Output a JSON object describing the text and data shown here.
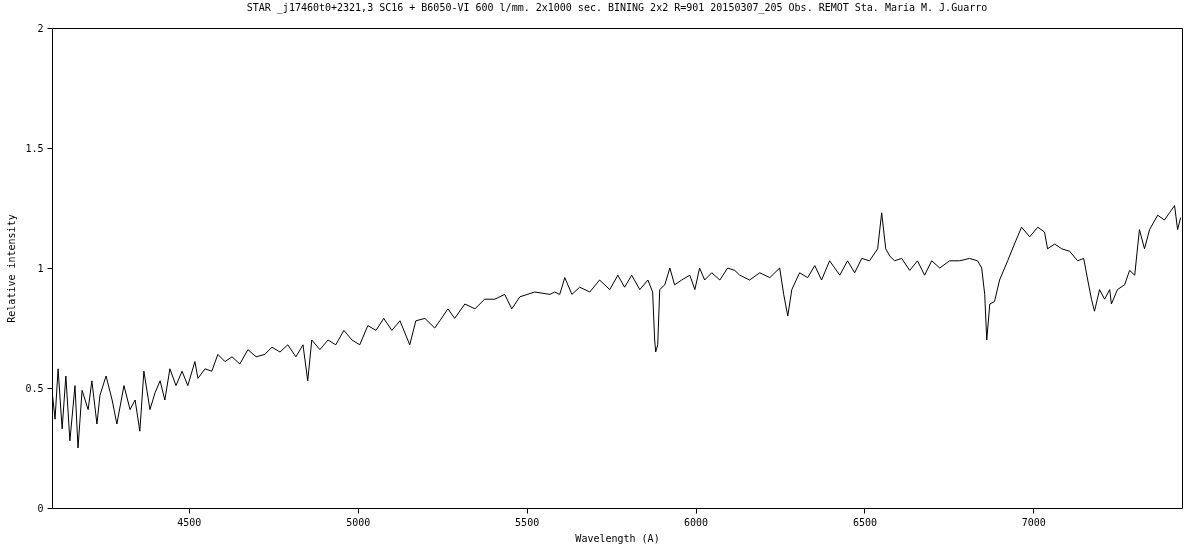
{
  "chart_data": {
    "type": "line",
    "title": "STAR _j17460t0+2321,3  SC16 + B6050-VI  600 l/mm. 2x1000 sec.  BINING 2x2 R=901  20150307_205   Obs. REMOT Sta. Maria M.  J.Guarro",
    "xlabel": "Wavelength (A)",
    "ylabel": "Relative intensity",
    "xlim": [
      4095,
      7440
    ],
    "xticks": [
      4500,
      5000,
      5500,
      6000,
      6500,
      7000
    ],
    "ylim": [
      0,
      2
    ],
    "yticks": [
      0,
      0.5,
      1,
      1.5,
      2
    ],
    "grid": false,
    "legend": false,
    "marker": "none",
    "line_style": "solid",
    "series": [
      {
        "color": "#000000",
        "x": [
          4095,
          4104,
          4113,
          4125,
          4136,
          4148,
          4163,
          4172,
          4184,
          4202,
          4213,
          4228,
          4237,
          4255,
          4273,
          4287,
          4308,
          4326,
          4341,
          4355,
          4367,
          4385,
          4400,
          4415,
          4429,
          4444,
          4462,
          4480,
          4497,
          4518,
          4527,
          4548,
          4568,
          4586,
          4607,
          4628,
          4651,
          4675,
          4699,
          4725,
          4746,
          4770,
          4793,
          4817,
          4838,
          4852,
          4864,
          4888,
          4912,
          4935,
          4959,
          4983,
          5006,
          5030,
          5054,
          5077,
          5101,
          5125,
          5154,
          5172,
          5199,
          5228,
          5243,
          5267,
          5287,
          5317,
          5347,
          5376,
          5406,
          5435,
          5456,
          5480,
          5524,
          5569,
          5583,
          5598,
          5613,
          5634,
          5657,
          5687,
          5716,
          5746,
          5770,
          5790,
          5811,
          5835,
          5859,
          5873,
          5879,
          5882,
          5888,
          5894,
          5909,
          5924,
          5938,
          5959,
          5983,
          5998,
          6012,
          6027,
          6048,
          6072,
          6095,
          6116,
          6131,
          6160,
          6190,
          6220,
          6249,
          6261,
          6273,
          6285,
          6308,
          6332,
          6353,
          6373,
          6397,
          6427,
          6450,
          6471,
          6492,
          6515,
          6539,
          6551,
          6563,
          6575,
          6589,
          6610,
          6634,
          6657,
          6678,
          6699,
          6723,
          6752,
          6782,
          6811,
          6835,
          6847,
          6856,
          6862,
          6871,
          6885,
          6900,
          6924,
          6944,
          6965,
          6989,
          7013,
          7033,
          7042,
          7063,
          7084,
          7107,
          7131,
          7149,
          7161,
          7172,
          7181,
          7196,
          7211,
          7226,
          7231,
          7249,
          7270,
          7285,
          7300,
          7314,
          7329,
          7344,
          7368,
          7388,
          7403,
          7418,
          7427,
          7436
        ],
        "values": [
          0.49,
          0.37,
          0.58,
          0.33,
          0.55,
          0.28,
          0.51,
          0.25,
          0.49,
          0.41,
          0.53,
          0.35,
          0.47,
          0.55,
          0.45,
          0.35,
          0.51,
          0.41,
          0.45,
          0.32,
          0.57,
          0.41,
          0.48,
          0.53,
          0.45,
          0.58,
          0.51,
          0.57,
          0.51,
          0.61,
          0.54,
          0.58,
          0.57,
          0.64,
          0.61,
          0.63,
          0.6,
          0.66,
          0.63,
          0.64,
          0.67,
          0.65,
          0.68,
          0.63,
          0.68,
          0.53,
          0.7,
          0.66,
          0.7,
          0.68,
          0.74,
          0.7,
          0.68,
          0.76,
          0.74,
          0.79,
          0.74,
          0.78,
          0.68,
          0.78,
          0.79,
          0.75,
          0.78,
          0.83,
          0.79,
          0.85,
          0.83,
          0.87,
          0.87,
          0.89,
          0.83,
          0.88,
          0.9,
          0.89,
          0.9,
          0.89,
          0.96,
          0.89,
          0.92,
          0.9,
          0.95,
          0.91,
          0.97,
          0.92,
          0.97,
          0.91,
          0.95,
          0.9,
          0.7,
          0.65,
          0.68,
          0.91,
          0.93,
          1.0,
          0.93,
          0.95,
          0.97,
          0.91,
          1.0,
          0.95,
          0.98,
          0.95,
          1.0,
          0.99,
          0.97,
          0.95,
          0.98,
          0.96,
          1.0,
          0.89,
          0.8,
          0.91,
          0.98,
          0.96,
          1.01,
          0.95,
          1.03,
          0.97,
          1.03,
          0.98,
          1.04,
          1.03,
          1.08,
          1.23,
          1.08,
          1.05,
          1.03,
          1.04,
          0.99,
          1.03,
          0.97,
          1.03,
          1.0,
          1.03,
          1.03,
          1.04,
          1.03,
          1.0,
          0.89,
          0.7,
          0.85,
          0.86,
          0.95,
          1.03,
          1.1,
          1.17,
          1.13,
          1.17,
          1.15,
          1.08,
          1.1,
          1.08,
          1.07,
          1.03,
          1.04,
          0.95,
          0.87,
          0.82,
          0.91,
          0.87,
          0.91,
          0.85,
          0.91,
          0.93,
          0.99,
          0.97,
          1.16,
          1.08,
          1.16,
          1.22,
          1.2,
          1.23,
          1.26,
          1.16,
          1.21
        ]
      }
    ]
  }
}
